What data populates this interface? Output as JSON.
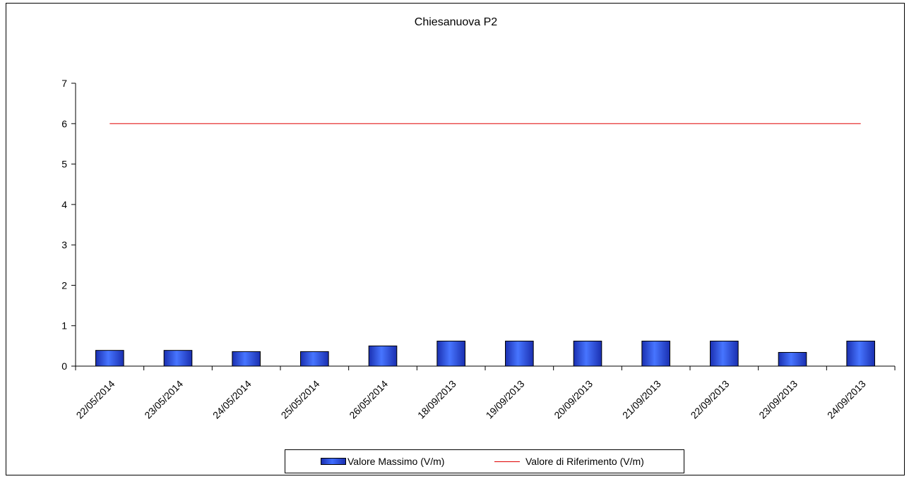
{
  "chart_data": {
    "type": "bar",
    "title": "Chiesanuova P2",
    "categories": [
      "22/05/2014",
      "23/05/2014",
      "24/05/2014",
      "25/05/2014",
      "26/05/2014",
      "18/09/2013",
      "19/09/2013",
      "20/09/2013",
      "21/09/2013",
      "22/09/2013",
      "23/09/2013",
      "24/09/2013"
    ],
    "series": [
      {
        "name": "Valore Massimo (V/m)",
        "type": "bar",
        "color": "#2a47e0",
        "values": [
          0.39,
          0.39,
          0.36,
          0.36,
          0.5,
          0.62,
          0.62,
          0.62,
          0.62,
          0.62,
          0.34,
          0.62
        ]
      },
      {
        "name": "Valore di Riferimento (V/m)",
        "type": "line",
        "color": "#e00000",
        "values": [
          6,
          6,
          6,
          6,
          6,
          6,
          6,
          6,
          6,
          6,
          6,
          6
        ]
      }
    ],
    "ylim": [
      0,
      7
    ],
    "yticks": [
      0,
      1,
      2,
      3,
      4,
      5,
      6,
      7
    ],
    "xlabel": "",
    "ylabel": "",
    "grid": false,
    "legend": "bottom"
  }
}
